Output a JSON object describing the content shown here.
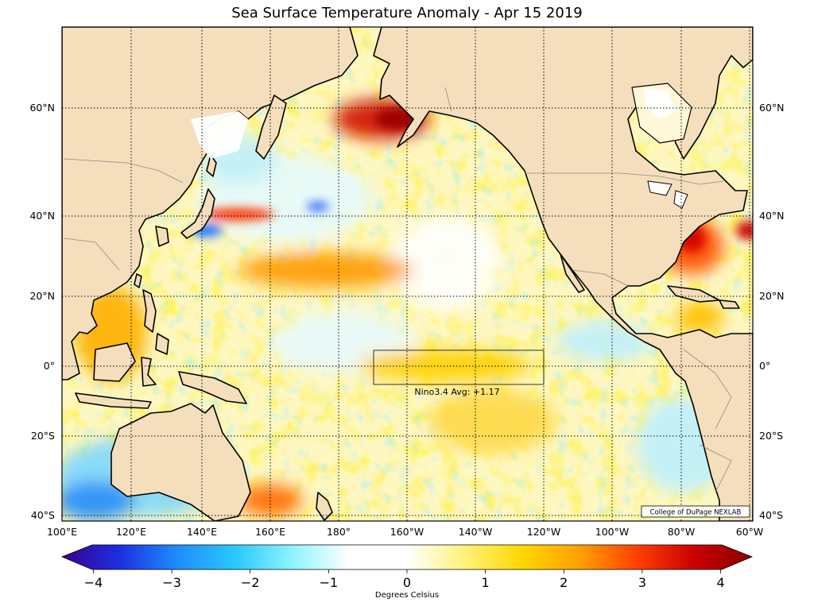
{
  "title": "Sea Surface Temperature Anomaly - Apr 15 2019",
  "credit": "College of DuPage NEXLAB",
  "nino_label": "Nino3.4 Avg: +1.17",
  "nino_box": {
    "lon_west": "170°W",
    "lon_east": "120°W",
    "lat_north": "5°N",
    "lat_south": "5°S"
  },
  "lon_labels": [
    "100°E",
    "120°E",
    "140°E",
    "160°E",
    "180°",
    "160°W",
    "140°W",
    "120°W",
    "100°W",
    "80°W",
    "60°W"
  ],
  "lat_labels": [
    "60°N",
    "40°N",
    "20°N",
    "0°",
    "20°S",
    "40°S"
  ],
  "colorbar": {
    "label": "Degrees Celsius",
    "ticks": [
      "−4",
      "−3",
      "−2",
      "−1",
      "0",
      "1",
      "2",
      "3",
      "4"
    ],
    "range": [
      -4.4,
      4.4
    ],
    "stops": [
      "#3a0090",
      "#1c2fe0",
      "#1e8cff",
      "#28c8ff",
      "#8ef3ff",
      "#ffffff",
      "#ffffff",
      "#fff27a",
      "#ffd700",
      "#ffa000",
      "#ff4000",
      "#c80000",
      "#8b0000"
    ]
  },
  "colors": {
    "land": "#f5debb",
    "coast": "#000000",
    "border": "#8a8a8a",
    "grid": "#000000"
  }
}
